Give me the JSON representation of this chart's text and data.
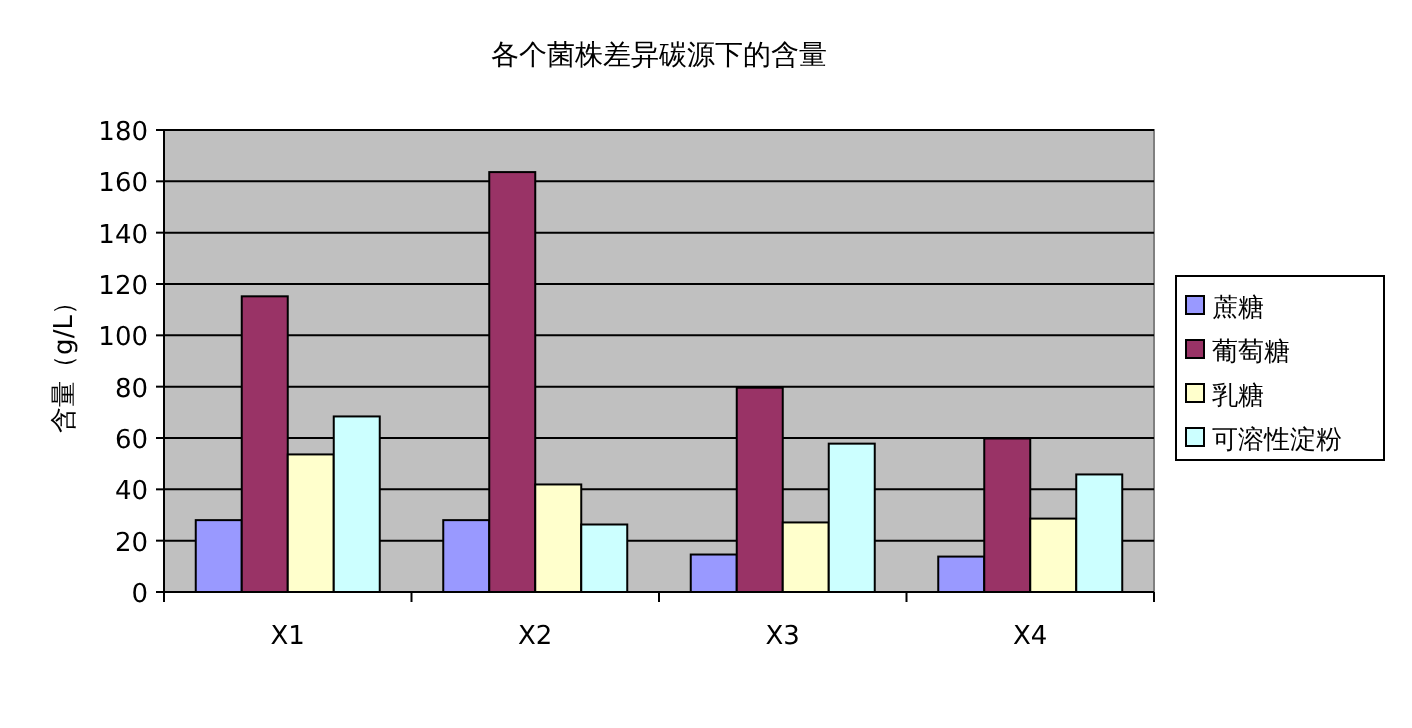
{
  "chart_data": {
    "type": "bar",
    "title": "各个菌株差异碳源下的含量",
    "ylabel": "含量（g/L）",
    "categories": [
      "X1",
      "X2",
      "X3",
      "X4"
    ],
    "series": [
      {
        "name": "蔗糖",
        "color": "#9999ff",
        "values": [
          28,
          28,
          14.6,
          13.8
        ]
      },
      {
        "name": "葡萄糖",
        "color": "#993366",
        "values": [
          115.2,
          163.6,
          79.6,
          59.8
        ]
      },
      {
        "name": "乳糖",
        "color": "#ffffcc",
        "values": [
          53.6,
          41.9,
          27.1,
          28.6
        ]
      },
      {
        "name": "可溶性淀粉",
        "color": "#ccffff",
        "values": [
          68.4,
          26.3,
          57.8,
          45.8
        ]
      }
    ],
    "ylim": [
      0,
      180
    ],
    "yticks": [
      0,
      20,
      40,
      60,
      80,
      100,
      120,
      140,
      160,
      180
    ],
    "grid": "y",
    "legend": "right"
  }
}
